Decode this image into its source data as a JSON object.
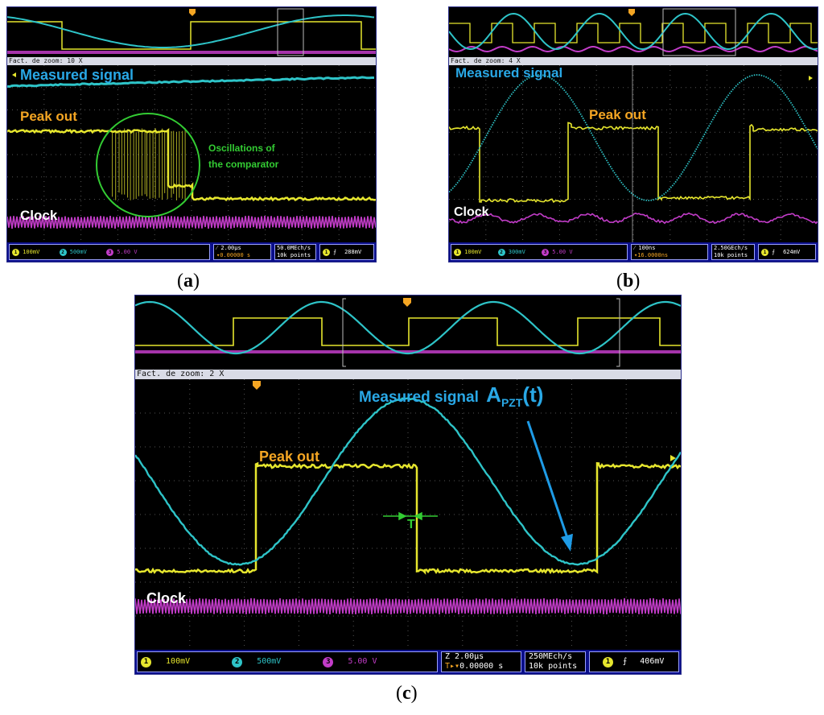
{
  "panels": {
    "a": {
      "caption_letter": "a",
      "zoom_label": "Fact. de zoom: 10 X",
      "labels": {
        "measured": "Measured signal",
        "peak": "Peak out",
        "clock": "Clock",
        "osc_line1": "Oscillations of",
        "osc_line2": "the comparator"
      },
      "status": {
        "ch1": "100mV",
        "ch2": "500mV",
        "ch3": "5.00 V",
        "timebase": "2.00µs",
        "delay": "0.00000 s",
        "sample_rate": "50.0MEch/s",
        "points": "10k points",
        "trigger": "288mV"
      }
    },
    "b": {
      "caption_letter": "b",
      "zoom_label": "Fact. de zoom: 4 X",
      "labels": {
        "measured": "Measured signal",
        "peak": "Peak out",
        "clock": "Clock"
      },
      "status": {
        "ch1": "100mV",
        "ch2": "300mV",
        "ch3": "5.00 V",
        "timebase": "100ns",
        "delay": "16.0000ns",
        "sample_rate": "2.50GEch/s",
        "points": "10k points",
        "trigger": "624mV"
      }
    },
    "c": {
      "caption_letter": "c",
      "zoom_label": "Fact. de zoom: 2 X",
      "labels": {
        "measured": "Measured signal",
        "apzt_main": "A",
        "apzt_sub": "PZT",
        "apzt_arg": "(t)",
        "peak": "Peak out",
        "clock": "Clock",
        "t_marker": "T"
      },
      "status": {
        "ch1": "100mV",
        "ch2": "500mV",
        "ch3": "5.00 V",
        "timebase": "2.00µs",
        "delay": "0.00000 s",
        "sample_rate": "250MEch/s",
        "points": "10k points",
        "trigger": "406mV"
      }
    }
  },
  "colors": {
    "ch1": "#e6e62e",
    "ch2": "#2ec4c8",
    "ch3": "#c23cc8",
    "peak_label": "#f5a623",
    "measured_label": "#29a8e6",
    "osc_label": "#33cc33",
    "clock_label": "#ffffff"
  }
}
